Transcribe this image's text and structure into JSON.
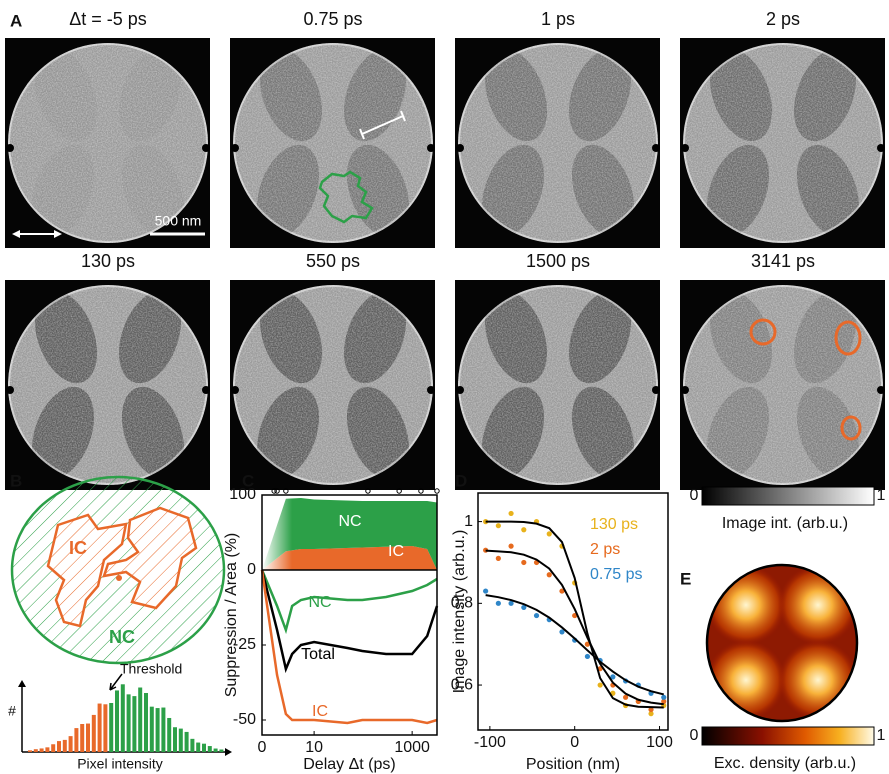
{
  "figure": {
    "panel_labels": [
      "A",
      "B",
      "C",
      "D",
      "E"
    ],
    "A": {
      "titles": [
        "Δt = -5 ps",
        "0.75 ps",
        "1 ps",
        "2 ps",
        "130 ps",
        "550 ps",
        "1500 ps",
        "3141 ps"
      ],
      "scale_bar": "500 nm"
    },
    "B": {
      "ic": "IC",
      "nc": "NC",
      "threshold": "Threshold",
      "hist_y": "#",
      "hist_x": "Pixel intensity"
    },
    "E": {
      "image_colorbar": {
        "min": "0",
        "max": "1",
        "label": "Image int. (arb.u.)"
      },
      "density_colorbar": {
        "min": "0",
        "max": "1",
        "label": "Exc. density (arb.u.)"
      }
    }
  },
  "chart_data": [
    {
      "type": "area",
      "stacked": true,
      "ylabel": "Suppression / Area (%)",
      "xscale": "symlog",
      "x": [
        0,
        2,
        5,
        10,
        100,
        1000,
        2000,
        3141
      ],
      "xlim": [
        0,
        3141
      ],
      "ylim": [
        0,
        100
      ],
      "yticks": [
        100
      ],
      "sample_delays": [
        0.75,
        1,
        2,
        130,
        550,
        1500,
        3141
      ],
      "series": [
        {
          "name": "IC",
          "color": "#e8692a",
          "values": [
            0,
            25,
            28,
            28,
            30,
            32,
            28,
            0
          ]
        },
        {
          "name": "NC",
          "color": "#2ca048",
          "values": [
            0,
            70,
            68,
            66,
            62,
            60,
            64,
            90
          ]
        }
      ]
    },
    {
      "type": "line",
      "xlabel": "Delay Δt (ps)",
      "xscale": "symlog",
      "x": [
        0,
        1,
        2,
        3,
        5,
        10,
        50,
        100,
        300,
        1000,
        2000,
        3141
      ],
      "xlim": [
        0,
        3141
      ],
      "xticks": [
        0,
        10,
        1000
      ],
      "ylim": [
        -55,
        0
      ],
      "yticks": [
        0,
        -25,
        -50
      ],
      "series": [
        {
          "name": "NC",
          "color": "#2ca048",
          "values": [
            0,
            -12,
            -20,
            -12,
            -10,
            -9,
            -10,
            -10,
            -9,
            -7,
            -5,
            -3
          ]
        },
        {
          "name": "Total",
          "color": "#000000",
          "values": [
            0,
            -20,
            -33,
            -28,
            -25,
            -24,
            -26,
            -27,
            -28,
            -28,
            -22,
            -12
          ]
        },
        {
          "name": "IC",
          "color": "#e8692a",
          "values": [
            0,
            -35,
            -48,
            -50,
            -50,
            -50,
            -51,
            -50,
            -50,
            -50,
            -51,
            -50
          ]
        }
      ]
    },
    {
      "type": "scatter",
      "xlabel": "Position (nm)",
      "ylabel": "Image intensity (arb.u.)",
      "x": [
        -105,
        -90,
        -75,
        -60,
        -45,
        -30,
        -15,
        0,
        15,
        30,
        45,
        60,
        75,
        90,
        105
      ],
      "xlim": [
        -114,
        110
      ],
      "xticks": [
        -100,
        0,
        100
      ],
      "ylim": [
        0.49,
        1.07
      ],
      "yticks": [
        0.6,
        0.8,
        1
      ],
      "series": [
        {
          "name": "130 ps",
          "color": "#e8b21c",
          "values": [
            1.0,
            0.99,
            1.02,
            0.98,
            1.0,
            0.97,
            0.94,
            0.85,
            0.7,
            0.6,
            0.58,
            0.55,
            0.56,
            0.53,
            0.55
          ],
          "fit": [
            1.0,
            1.0,
            1.0,
            0.999,
            0.995,
            0.984,
            0.95,
            0.862,
            0.726,
            0.617,
            0.568,
            0.552,
            0.547,
            0.546,
            0.545
          ]
        },
        {
          "name": "2 ps",
          "color": "#e66a1e",
          "values": [
            0.93,
            0.91,
            0.94,
            0.9,
            0.9,
            0.87,
            0.83,
            0.77,
            0.7,
            0.64,
            0.6,
            0.57,
            0.56,
            0.54,
            0.56
          ],
          "fit": [
            0.929,
            0.927,
            0.925,
            0.919,
            0.907,
            0.885,
            0.845,
            0.786,
            0.716,
            0.652,
            0.606,
            0.579,
            0.564,
            0.557,
            0.553
          ]
        },
        {
          "name": "0.75 ps",
          "color": "#2f86c8",
          "values": [
            0.83,
            0.8,
            0.8,
            0.79,
            0.77,
            0.76,
            0.73,
            0.71,
            0.67,
            0.66,
            0.62,
            0.61,
            0.6,
            0.58,
            0.57
          ],
          "fit": [
            0.82,
            0.815,
            0.808,
            0.798,
            0.784,
            0.765,
            0.741,
            0.714,
            0.685,
            0.657,
            0.633,
            0.612,
            0.596,
            0.585,
            0.577
          ]
        }
      ]
    }
  ]
}
